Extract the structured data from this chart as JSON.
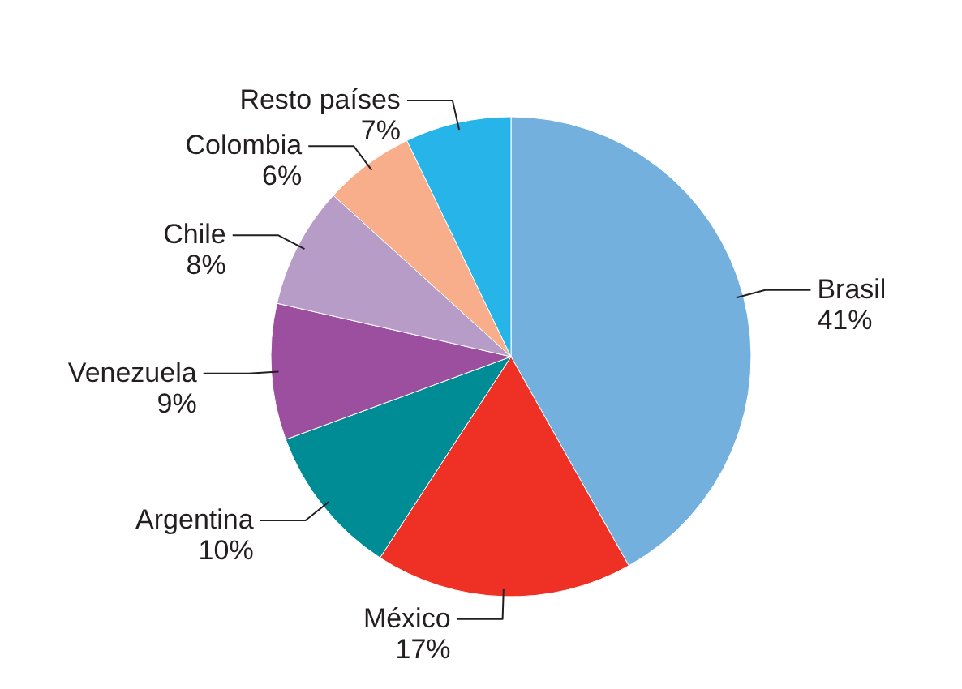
{
  "chart_data": {
    "type": "pie",
    "categories": [
      "Brasil",
      "México",
      "Argentina",
      "Venezuela",
      "Chile",
      "Colombia",
      "Resto países"
    ],
    "values": [
      41,
      17,
      10,
      9,
      8,
      6,
      7
    ],
    "value_labels": [
      "41%",
      "17%",
      "10%",
      "9%",
      "8%",
      "6%",
      "7%"
    ],
    "colors": [
      "#74b0dd",
      "#ee3124",
      "#008c95",
      "#9b4f9e",
      "#b89cc8",
      "#f8ad8b",
      "#27b4e8"
    ]
  }
}
